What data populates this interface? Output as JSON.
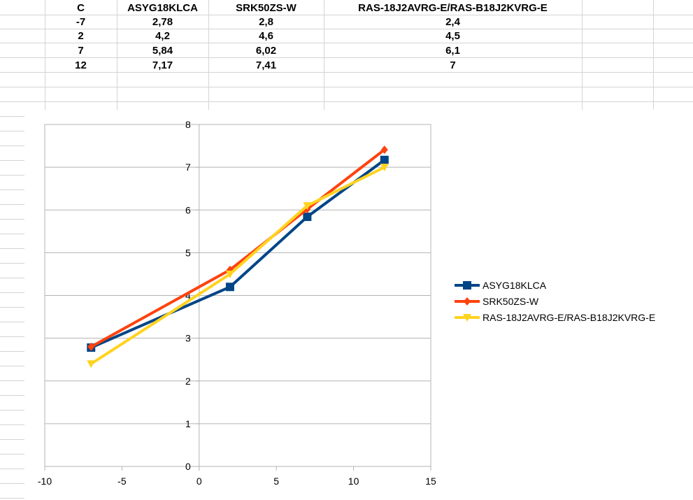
{
  "table": {
    "headers": [
      "C",
      "ASYG18KLCA",
      "SRK50ZS-W",
      "RAS-18J2AVRG-E/RAS-B18J2KVRG-E"
    ],
    "rows": [
      [
        "-7",
        "2,78",
        "2,8",
        "2,4"
      ],
      [
        "2",
        "4,2",
        "4,6",
        "4,5"
      ],
      [
        "7",
        "5,84",
        "6,02",
        "6,1"
      ],
      [
        "12",
        "7,17",
        "7,41",
        "7"
      ]
    ]
  },
  "chart_data": {
    "type": "line",
    "title": "",
    "xlabel": "",
    "ylabel": "",
    "xlim": [
      -10,
      15
    ],
    "ylim": [
      0,
      8
    ],
    "x_ticks": [
      "-10",
      "-5",
      "0",
      "5",
      "10",
      "15"
    ],
    "y_ticks": [
      "0",
      "1",
      "2",
      "3",
      "4",
      "5",
      "6",
      "7",
      "8"
    ],
    "grid": "horizontal",
    "legend_position": "right",
    "series": [
      {
        "name": "ASYG18KLCA",
        "marker": "square",
        "color": "#004586",
        "x": [
          -7,
          2,
          7,
          12
        ],
        "y": [
          2.78,
          4.2,
          5.84,
          7.17
        ]
      },
      {
        "name": "SRK50ZS-W",
        "marker": "diamond",
        "color": "#ff420e",
        "x": [
          -7,
          2,
          7,
          12
        ],
        "y": [
          2.8,
          4.6,
          6.02,
          7.41
        ]
      },
      {
        "name": "RAS-18J2AVRG-E/RAS-B18J2KVRG-E",
        "marker": "triangle-down",
        "color": "#ffd320",
        "x": [
          -7,
          2,
          7,
          12
        ],
        "y": [
          2.4,
          4.5,
          6.1,
          7
        ]
      }
    ]
  }
}
